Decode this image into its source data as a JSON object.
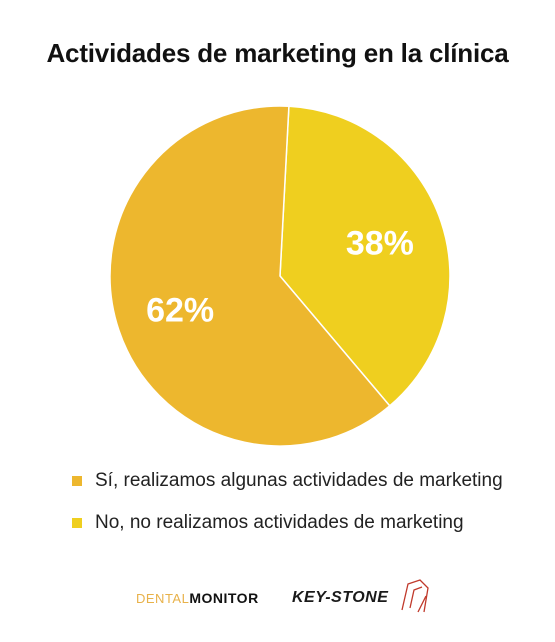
{
  "title": "Actividades de marketing en la clínica",
  "chart_data": {
    "type": "pie",
    "title": "Actividades de marketing en la clínica",
    "slices": [
      {
        "label": "Sí, realizamos algunas actividades de marketing",
        "value": 62,
        "display": "62%",
        "color": "#EDB72E"
      },
      {
        "label": "No, no realizamos actividades de marketing",
        "value": 38,
        "display": "38%",
        "color": "#EFCF1F"
      }
    ],
    "legend_position": "bottom",
    "start": "top, second slice clockwise"
  },
  "logos": {
    "dental_light": "DENTAL",
    "dental_bold": "MONITOR",
    "keystone": "KEY-STONE"
  }
}
